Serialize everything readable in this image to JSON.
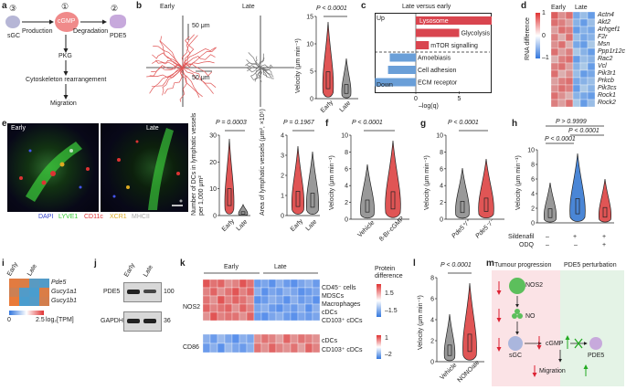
{
  "panels": {
    "a": "a",
    "b": "b",
    "c": "c",
    "d": "d",
    "e": "e",
    "f": "f",
    "g": "g",
    "h": "h",
    "i": "i",
    "j": "j",
    "k": "k",
    "l": "l",
    "m": "m"
  },
  "a": {
    "n3": "③",
    "n1": "①",
    "n2": "②",
    "sgc": "sGC",
    "cgmp": "cGMP",
    "pde5": "PDE5",
    "production": "Production",
    "degradation": "Degradation",
    "pkg": "PKG",
    "cyto": "Cytoskeleton rearrangement",
    "migration": "Migration",
    "colors": {
      "sgc": "#b6b6d6",
      "cgmp": "#f08a8a",
      "pde5": "#c7a9dc"
    }
  },
  "b": {
    "early": "Early",
    "late": "Late",
    "scale_v": "50 μm",
    "scale_h": "50 μm",
    "pval": "P < 0.0001",
    "ylabel": "Velocity (μm min⁻¹)",
    "yticks": [
      "0",
      "5",
      "10",
      "15"
    ],
    "xcats": [
      "Early",
      "Late"
    ],
    "colors": {
      "early": "#e05555",
      "late": "#888888"
    }
  },
  "c": {
    "title": "Late versus early",
    "up": "Up",
    "down": "Down",
    "xlabel": "–log(q)",
    "xticks": [
      "5",
      "0",
      "5",
      "9"
    ],
    "colors": {
      "up": "#d9454f",
      "down": "#6a9fd8"
    }
  },
  "d": {
    "early": "Early",
    "late": "Late",
    "scale_label": "RNA difference",
    "scale_ticks": [
      "1",
      "0",
      "–1"
    ],
    "genes": [
      "Actn4",
      "Akt2",
      "Arhgef1",
      "F2r",
      "Msn",
      "Ppp1r12c",
      "Rac2",
      "Vcl",
      "Pik3r1",
      "Prkcb",
      "Pik3cs",
      "Rock1",
      "Rock2"
    ]
  },
  "e": {
    "early": "Early",
    "late": "Late",
    "legend": [
      "DAPI",
      "LYVE1",
      "CD11c",
      "XCR1",
      "MHCII"
    ],
    "legend_colors": [
      "#3344cc",
      "#33cc33",
      "#dd3333",
      "#ddaa22",
      "#bbbbbb"
    ],
    "p1": "P = 0.0003",
    "p2": "P = 0.1967",
    "y1": "Number of DCs in lymphatic vessels per 1,000 μm²",
    "y2": "Area of lymphatic vessels (μm², ×10⁵)",
    "y1ticks": [
      "0",
      "10",
      "20",
      "30"
    ],
    "y2ticks": [
      "0",
      "1",
      "2",
      "3",
      "4"
    ],
    "xcats": [
      "Early",
      "Late"
    ]
  },
  "f": {
    "pval": "P < 0.0001",
    "ylabel": "Velocity (μm min⁻¹)",
    "yticks": [
      "0",
      "2",
      "4",
      "6",
      "8",
      "10"
    ],
    "xcats": [
      "Vehicle",
      "8-Br-cGMP"
    ]
  },
  "g": {
    "pval": "P < 0.0001",
    "ylabel": "Velocity (μm min⁻¹)",
    "yticks": [
      "0",
      "2",
      "4",
      "6",
      "8",
      "10"
    ],
    "xcats": [
      "Pde5⁺/⁺",
      "Pde5⁻/⁻"
    ]
  },
  "h": {
    "p1": "P > 0.9999",
    "p2": "P < 0.0001",
    "p3": "P < 0.0001",
    "ylabel": "Velocity (μm min⁻¹)",
    "yticks": [
      "0",
      "2",
      "4",
      "6",
      "8",
      "10"
    ],
    "row1": "Sildenafil",
    "row2": "ODQ",
    "row1vals": [
      "–",
      "+",
      "+"
    ],
    "row2vals": [
      "–",
      "–",
      "+"
    ]
  },
  "i": {
    "early": "Early",
    "late": "Late",
    "genes": [
      "Pde5",
      "Gucy1a1",
      "Gucy1b1"
    ],
    "scale_ticks": [
      "0",
      "2.5"
    ],
    "scale_label": "log₂[TPM]"
  },
  "j": {
    "early": "Early",
    "late": "Late",
    "pde5": "PDE5",
    "gapdh": "GAPDH",
    "kda1": "100",
    "kda2": "36"
  },
  "k": {
    "early": "Early",
    "late": "Late",
    "nos2": "NOS2",
    "cd86": "CD86",
    "rows_nos2": [
      "CD45⁻ cells",
      "MDSCs",
      "Macrophages",
      "cDCs",
      "CD103⁺ cDCs"
    ],
    "rows_cd86": [
      "cDCs",
      "CD103⁺ cDCs"
    ],
    "scale_label": "Protein difference",
    "scale1": [
      "1.5",
      "–1.5"
    ],
    "scale2": [
      "1",
      "–2"
    ]
  },
  "l": {
    "pval": "P < 0.0001",
    "ylabel": "Velocity (μm min⁻¹)",
    "yticks": [
      "0",
      "2",
      "4",
      "6",
      "8"
    ],
    "xcats": [
      "Vehicle",
      "NONOate"
    ]
  },
  "m": {
    "left_title": "Tumour progression",
    "right_title": "PDE5 perturbation",
    "nos2": "NOS2",
    "no": "NO",
    "sgc": "sGC",
    "cgmp": "cGMP",
    "pde5": "PDE5",
    "migration": "Migration"
  }
}
